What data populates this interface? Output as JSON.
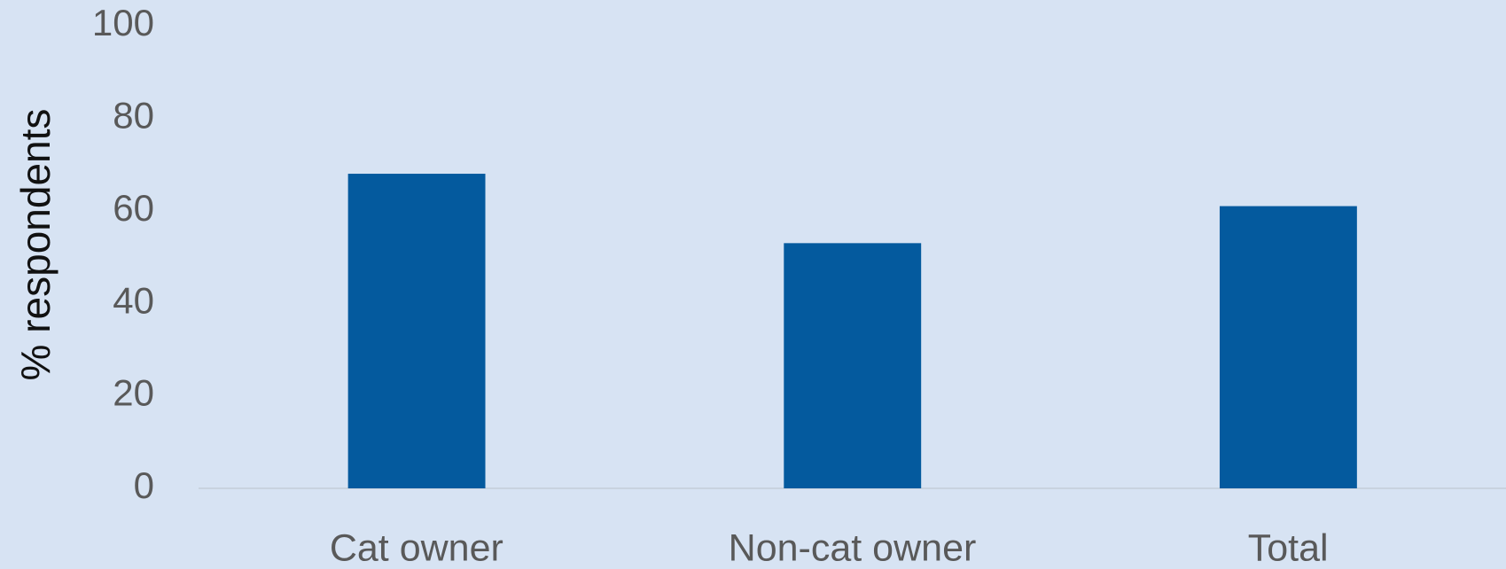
{
  "chart_data": {
    "type": "bar",
    "y_label": "% respondents",
    "categories": [
      "Cat owner",
      "Non-cat owner",
      "Total"
    ],
    "values": [
      68,
      53,
      61
    ],
    "color": "#045a9e",
    "ylim": [
      0,
      100
    ],
    "yticks": [
      0,
      20,
      40,
      60,
      80,
      100
    ],
    "grid": false
  }
}
